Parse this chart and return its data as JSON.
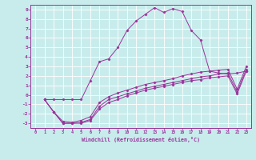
{
  "xlabel": "Windchill (Refroidissement éolien,°C)",
  "bg_color": "#c8ecec",
  "line_color": "#993399",
  "xlim": [
    -0.5,
    23.5
  ],
  "ylim": [
    -3.5,
    9.5
  ],
  "xticks": [
    0,
    1,
    2,
    3,
    4,
    5,
    6,
    7,
    8,
    9,
    10,
    11,
    12,
    13,
    14,
    15,
    16,
    17,
    18,
    19,
    20,
    21,
    22,
    23
  ],
  "yticks": [
    -3,
    -2,
    -1,
    0,
    1,
    2,
    3,
    4,
    5,
    6,
    7,
    8,
    9
  ],
  "lines": [
    {
      "x": [
        1,
        2,
        3,
        4,
        5,
        6,
        7,
        8,
        9,
        10,
        11,
        12,
        13,
        14,
        15,
        16,
        17,
        18,
        19,
        20,
        21,
        22,
        23
      ],
      "y": [
        -0.5,
        -0.5,
        -0.5,
        -0.5,
        -0.5,
        1.5,
        3.5,
        3.8,
        5.0,
        6.8,
        7.8,
        8.5,
        9.2,
        8.7,
        9.1,
        8.8,
        6.8,
        5.8,
        2.5,
        2.3,
        2.2,
        2.3,
        2.5
      ]
    },
    {
      "x": [
        1,
        2,
        3,
        4,
        5,
        6,
        7,
        8,
        9,
        10,
        11,
        12,
        13,
        14,
        15,
        16,
        17,
        18,
        19,
        20,
        21,
        22,
        23
      ],
      "y": [
        -0.5,
        -1.8,
        -3.0,
        -3.0,
        -3.0,
        -2.7,
        -1.5,
        -0.8,
        -0.5,
        -0.1,
        0.2,
        0.5,
        0.7,
        0.9,
        1.1,
        1.3,
        1.5,
        1.6,
        1.8,
        1.9,
        2.0,
        0.1,
        2.5
      ]
    },
    {
      "x": [
        1,
        2,
        3,
        4,
        5,
        6,
        7,
        8,
        9,
        10,
        11,
        12,
        13,
        14,
        15,
        16,
        17,
        18,
        19,
        20,
        21,
        22,
        23
      ],
      "y": [
        -0.5,
        -1.8,
        -3.0,
        -3.0,
        -2.9,
        -2.6,
        -1.2,
        -0.5,
        -0.2,
        0.1,
        0.4,
        0.7,
        0.9,
        1.1,
        1.3,
        1.5,
        1.7,
        1.9,
        2.0,
        2.2,
        2.3,
        0.3,
        2.7
      ]
    },
    {
      "x": [
        1,
        2,
        3,
        4,
        5,
        6,
        7,
        8,
        9,
        10,
        11,
        12,
        13,
        14,
        15,
        16,
        17,
        18,
        19,
        20,
        21,
        22,
        23
      ],
      "y": [
        -0.5,
        -1.8,
        -2.8,
        -2.9,
        -2.7,
        -2.3,
        -0.8,
        -0.2,
        0.2,
        0.5,
        0.8,
        1.1,
        1.3,
        1.5,
        1.7,
        2.0,
        2.2,
        2.4,
        2.5,
        2.6,
        2.7,
        0.6,
        3.0
      ]
    }
  ]
}
